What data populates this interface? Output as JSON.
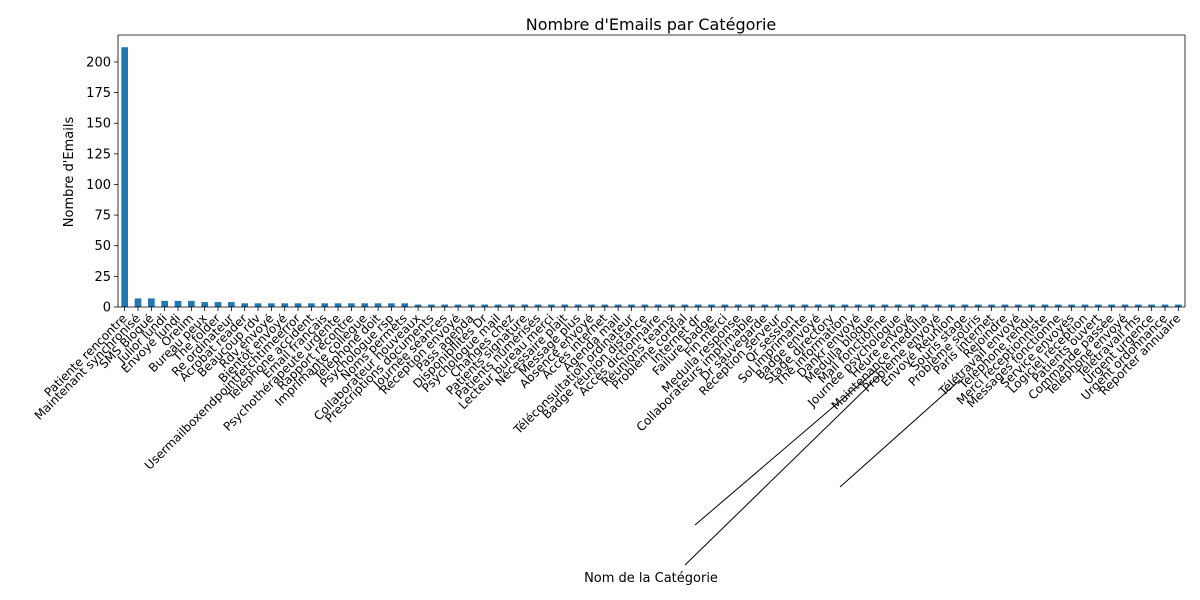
{
  "chart_data": {
    "type": "bar",
    "title": "Nombre d'Emails par Catégorie",
    "xlabel": "Nom de la Catégorie",
    "ylabel": "Nombre d'Emails",
    "ylim": [
      0,
      222
    ],
    "yticks": [
      0,
      25,
      50,
      75,
      100,
      125,
      150,
      175,
      200
    ],
    "bar_color": "#1f77b4",
    "grid": false,
    "categories": [
      "Patiente rencontre",
      "Maintenant synchronisé",
      "SMS Bloqué",
      "Julior lundi",
      "Envoyé lundi",
      "Oreiim",
      "Bureau peux",
      "The folder",
      "Re ordinateur",
      "Acrobat reader",
      "Beaucoup rdv",
      "Rdv envoyé",
      "Bientôt envoyé",
      "Usermailboxendpointfetchtimeerror",
      "Téléphone accident",
      "Email français",
      "Psychothérapeute urgente",
      "Rapport recontre",
      "Imprimante collègue",
      "Téléphone doit",
      "Psychologue rsp",
      "Noms permets",
      "Collaborateur nouveaux",
      "Prescriptions documents",
      "Journée séances",
      "Réception envoyé",
      "Pass agenda",
      "Disponibilités Dr",
      "Psychologue mail",
      "Changes chez",
      "Patients signature",
      "Patients numérisés",
      "Lecteur bureau merci",
      "Nécessaire plait",
      "Message plus",
      "Absence envoyé",
      "Accès internet",
      "Agenda mail",
      "Téléconsultation ordinateur",
      "Badge réunion distance",
      "Accès dictionnaire",
      "Réunions teams",
      "Problème cordial",
      "Internet dr",
      "Failure badge",
      "Fin merci",
      "Medulla response",
      "Collaborateurs imprimable",
      "Dr sauvegarde",
      "Réception serveur",
      "Qr session",
      "Sol imprimante",
      "Badge envoyé",
      "Stage directory",
      "The information",
      "Dankr envoyé",
      "Medulla bloque",
      "Mail fonctionne",
      "Journée psychologue",
      "Heure envoyé",
      "Maintenance medulla",
      "Problème envoyé",
      "Envoyé Réunion",
      "Souris stage",
      "Problème souris",
      "Paris internet",
      "Rejoindre",
      "Télétravail envoyé",
      "Téléphone rendu",
      "Merci réceptionniste",
      "Messages fonctionne",
      "Service envoyés",
      "Logiciel réception",
      "Patients ouvert",
      "Commande passée",
      "Téléphone envoyé",
      "Télétravail rhs",
      "Urgent urgence",
      "Urgent ordonnance",
      "Reporter annuaire"
    ],
    "values": [
      212,
      7,
      7,
      5,
      5,
      5,
      4,
      4,
      4,
      3,
      3,
      3,
      3,
      3,
      3,
      3,
      3,
      3,
      3,
      3,
      3,
      3,
      2,
      2,
      2,
      2,
      2,
      2,
      2,
      2,
      2,
      2,
      2,
      2,
      2,
      2,
      2,
      2,
      2,
      2,
      2,
      2,
      2,
      2,
      2,
      2,
      2,
      2,
      2,
      2,
      2,
      2,
      2,
      2,
      2,
      2,
      2,
      2,
      2,
      2,
      2,
      2,
      2,
      2,
      2,
      2,
      2,
      2,
      2,
      2,
      2,
      2,
      2,
      2,
      2,
      2,
      2,
      2,
      2,
      2
    ]
  }
}
